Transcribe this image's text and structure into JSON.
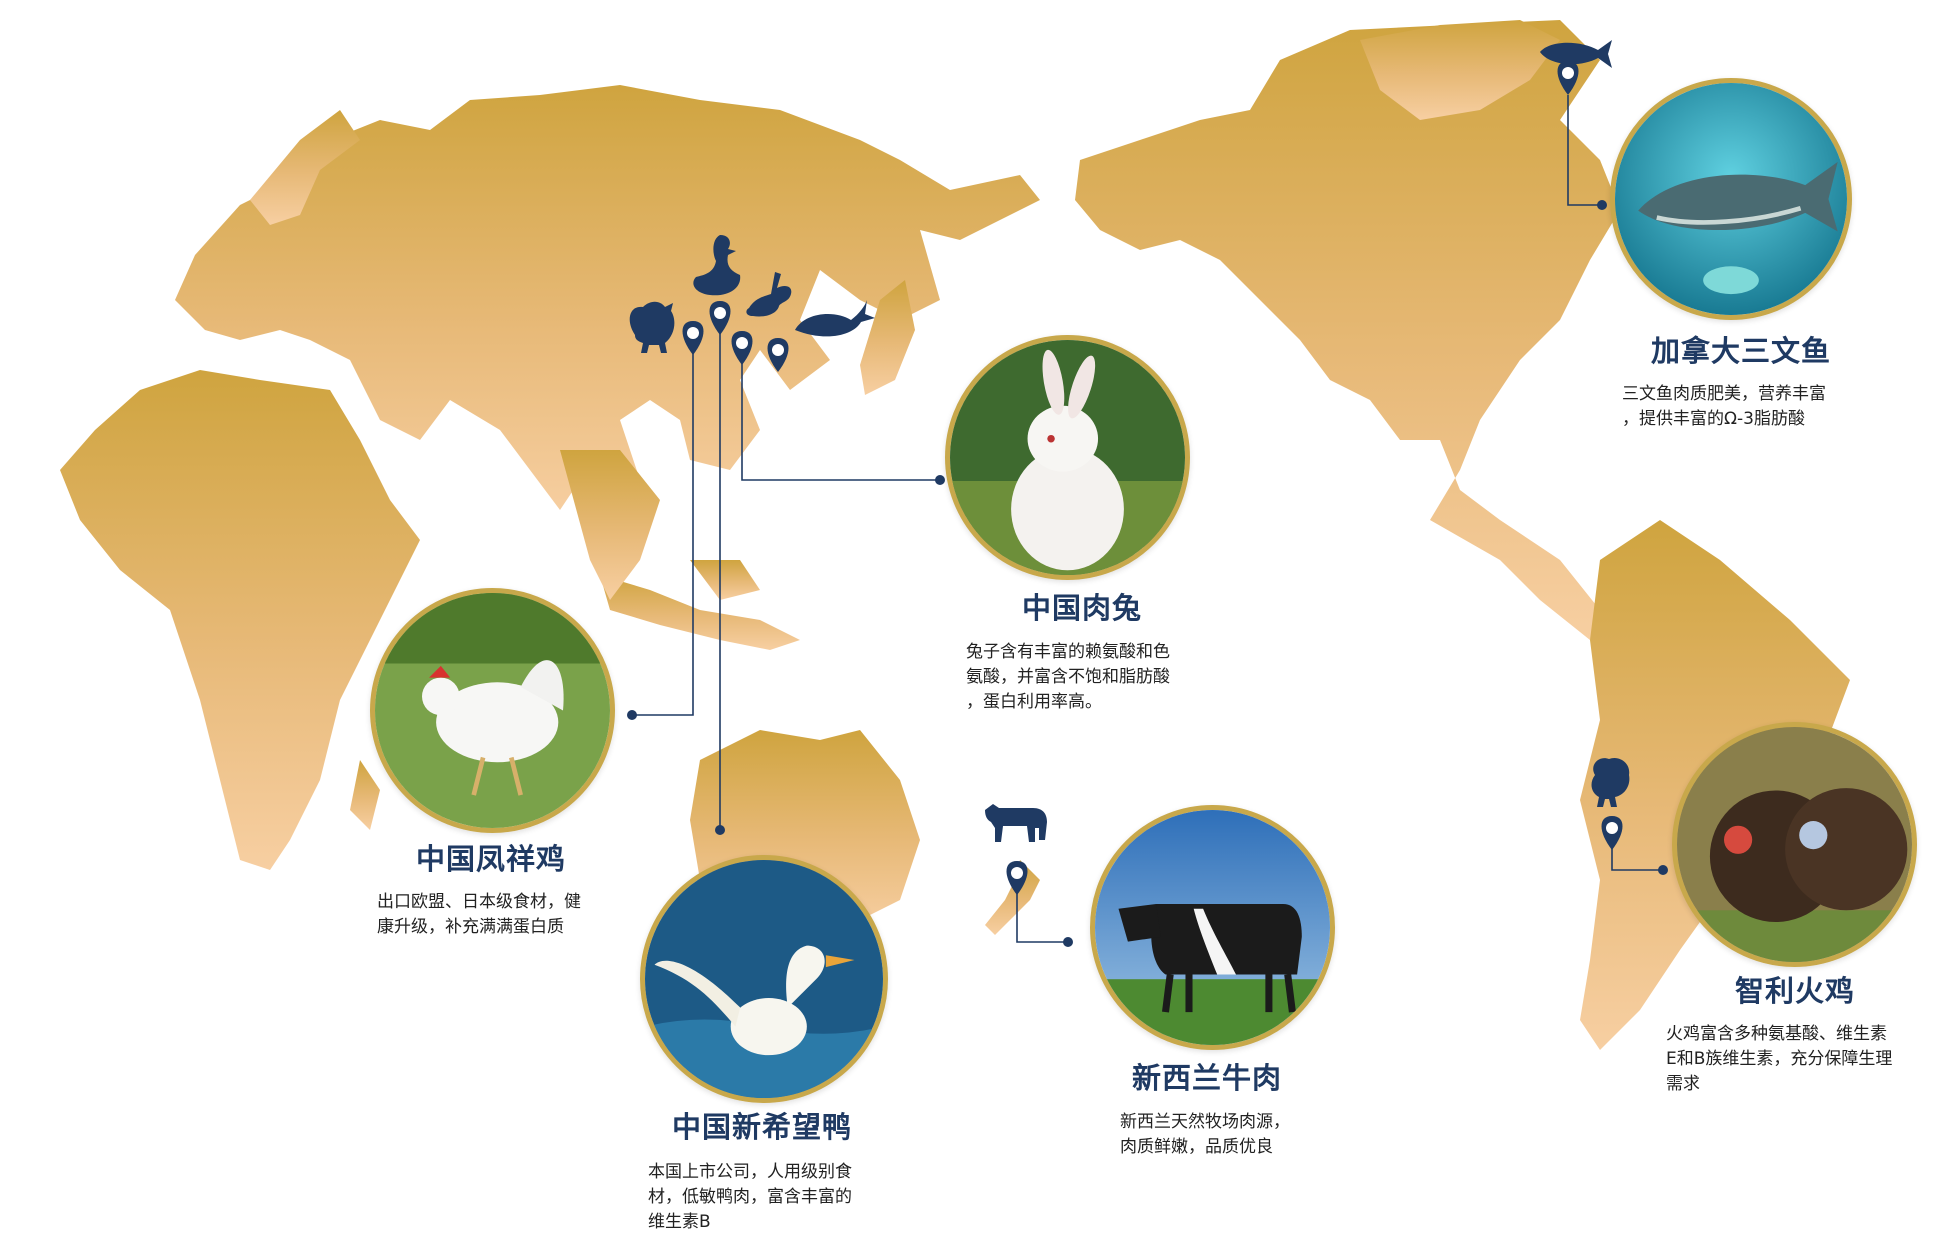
{
  "colors": {
    "land_top": "#cfa43f",
    "land_bottom": "#f5c89a",
    "navy": "#1f3a63",
    "ring": "#c8a84b"
  },
  "products": [
    {
      "id": "salmon",
      "title": "加拿大三文鱼",
      "desc": [
        "三文鱼肉质肥美，营养丰富",
        "，提供丰富的Ω-3脂肪酸"
      ],
      "icon": "fish-icon"
    },
    {
      "id": "rabbit",
      "title": "中国肉兔",
      "desc": [
        "兔子含有丰富的赖氨酸和色",
        "氨酸，并富含不饱和脂肪酸",
        "，蛋白利用率高。"
      ],
      "icon": "rabbit-icon"
    },
    {
      "id": "chicken",
      "title": "中国凤祥鸡",
      "desc": [
        "出口欧盟、日本级食材，健",
        "康升级，补充满满蛋白质"
      ],
      "icon": "chicken-icon"
    },
    {
      "id": "duck",
      "title": "中国新希望鸭",
      "desc": [
        "本国上市公司，人用级别食",
        "材，低敏鸭肉，富含丰富的",
        "维生素B"
      ],
      "icon": "duck-icon"
    },
    {
      "id": "beef",
      "title": "新西兰牛肉",
      "desc": [
        "新西兰天然牧场肉源，",
        "肉质鲜嫩，品质优良"
      ],
      "icon": "cow-icon"
    },
    {
      "id": "turkey",
      "title": "智利火鸡",
      "desc": [
        "火鸡富含多种氨基酸、维生素",
        "E和B族维生素，充分保障生理",
        "需求"
      ],
      "icon": "turkey-icon"
    }
  ]
}
